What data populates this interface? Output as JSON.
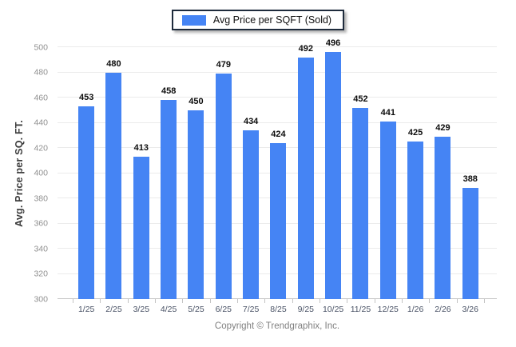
{
  "legend": {
    "label": "Avg Price per SQFT (Sold)",
    "swatch_color": "#4584f4"
  },
  "footer": {
    "text": "Copyright © Trendgraphix, Inc."
  },
  "chart_data": {
    "type": "bar",
    "title": "",
    "categories": [
      "1/25",
      "2/25",
      "3/25",
      "4/25",
      "5/25",
      "6/25",
      "7/25",
      "8/25",
      "9/25",
      "10/25",
      "11/25",
      "12/25",
      "1/26",
      "2/26",
      "3/26"
    ],
    "values": [
      453,
      480,
      413,
      458,
      450,
      479,
      434,
      424,
      492,
      496,
      452,
      441,
      425,
      429,
      388
    ],
    "series_name": "Avg Price per SQFT (Sold)",
    "xlabel": "",
    "ylabel": "Avg. Price per SQ. FT.",
    "ylim": [
      300,
      500
    ],
    "ytick_step": 20,
    "bar_color": "#4584f4",
    "grid": true,
    "legend_position": "top-center",
    "value_labels": true
  }
}
